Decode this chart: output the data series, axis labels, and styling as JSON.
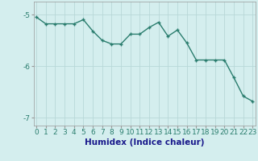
{
  "x": [
    0,
    1,
    2,
    3,
    4,
    5,
    6,
    7,
    8,
    9,
    10,
    11,
    12,
    13,
    14,
    15,
    16,
    17,
    18,
    19,
    20,
    21,
    22,
    23
  ],
  "y": [
    -5.05,
    -5.18,
    -5.18,
    -5.18,
    -5.18,
    -5.1,
    -5.32,
    -5.5,
    -5.57,
    -5.57,
    -5.38,
    -5.38,
    -5.25,
    -5.15,
    -5.42,
    -5.3,
    -5.55,
    -5.88,
    -5.88,
    -5.88,
    -5.88,
    -6.22,
    -6.58,
    -6.68
  ],
  "line_color": "#2a7d6e",
  "marker": "+",
  "marker_size": 3,
  "marker_lw": 1.0,
  "line_width": 1.0,
  "bg_color": "#d4eeee",
  "grid_color": "#b8d8d8",
  "xlabel": "Humidex (Indice chaleur)",
  "ylim": [
    -7.15,
    -4.75
  ],
  "yticks": [
    -7,
    -6,
    -5
  ],
  "ytick_labels": [
    "-7",
    "-6",
    "-5"
  ],
  "xticks": [
    0,
    1,
    2,
    3,
    4,
    5,
    6,
    7,
    8,
    9,
    10,
    11,
    12,
    13,
    14,
    15,
    16,
    17,
    18,
    19,
    20,
    21,
    22,
    23
  ],
  "xlim": [
    -0.3,
    23.3
  ],
  "tick_fontsize": 6.5,
  "label_fontsize": 7.5,
  "label_color": "#1a1a8c",
  "tick_color": "#2a7d6e"
}
